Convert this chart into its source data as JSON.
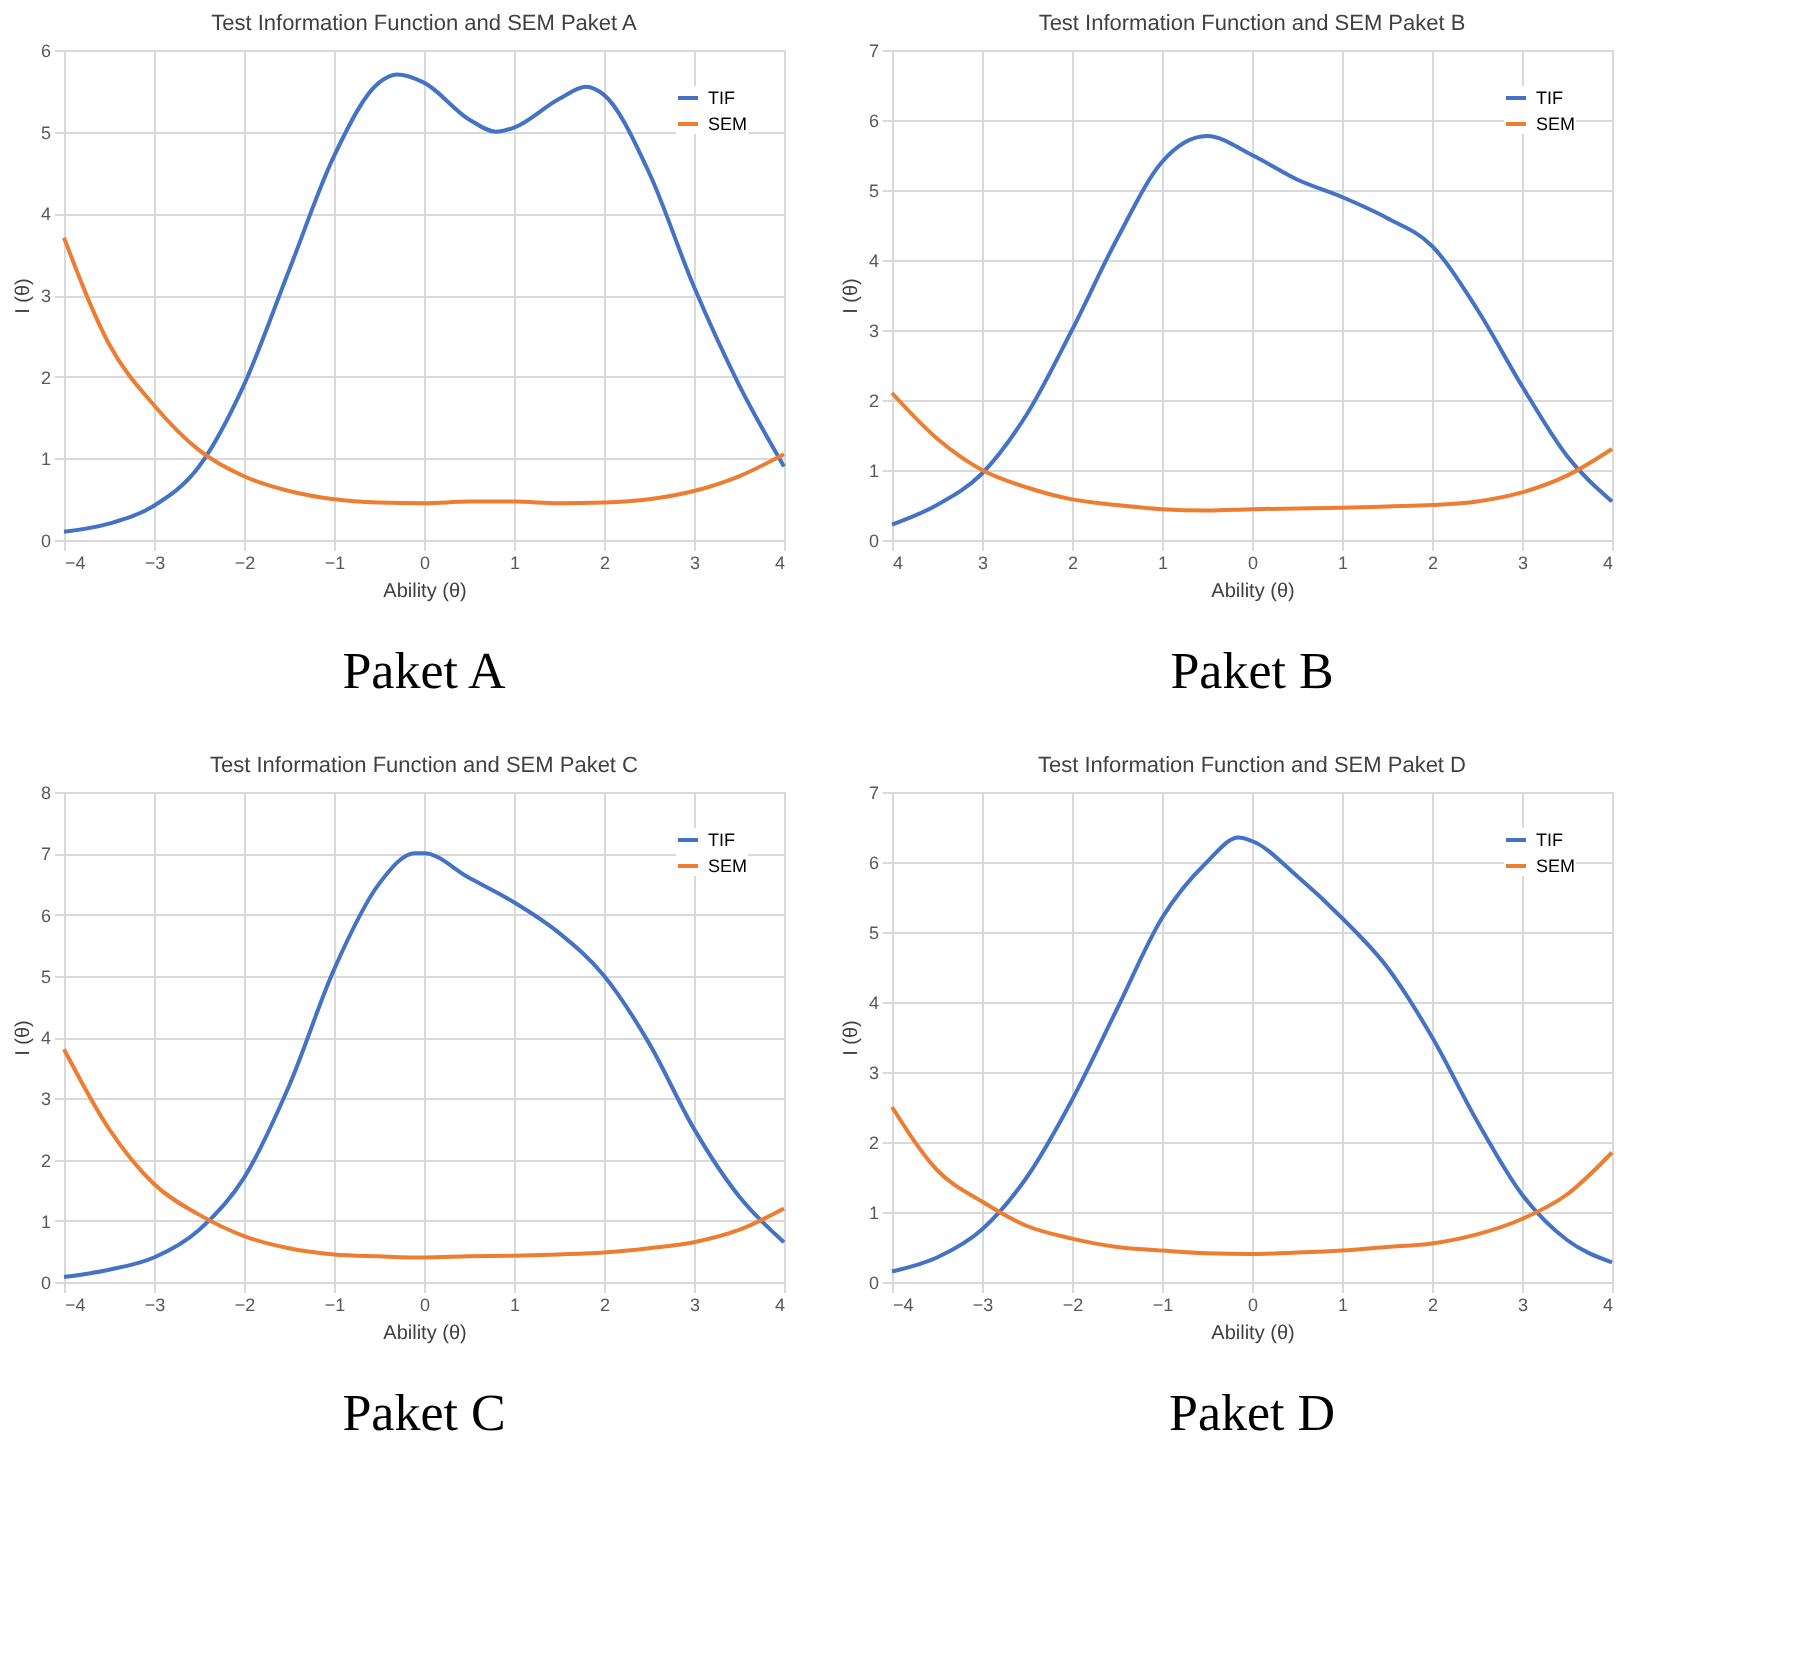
{
  "chart_data": [
    {
      "type": "line",
      "title": "Test Information Function and SEM Paket A",
      "xlabel": "Ability (θ)",
      "ylabel": "I (θ)",
      "annotations": [
        "Paket A"
      ],
      "xlim": [
        -4,
        4
      ],
      "xticks": [
        -4,
        -3,
        -2,
        -1,
        0,
        1,
        2,
        3,
        4
      ],
      "ylim": [
        0,
        6
      ],
      "yticks": [
        0,
        1,
        2,
        3,
        4,
        5,
        6
      ],
      "grid": true,
      "legend": "top right",
      "line_style": "solid",
      "marker": "none",
      "series": [
        {
          "name": "TIF",
          "color": "#4472c4",
          "x": [
            -4,
            -3.5,
            -3,
            -2.5,
            -2,
            -1.5,
            -1,
            -0.5,
            -0.3,
            0,
            0.5,
            0.8,
            1,
            1.5,
            1.8,
            2,
            2.5,
            3,
            3.5,
            4
          ],
          "values": [
            0.1,
            0.2,
            0.42,
            0.9,
            1.9,
            3.3,
            4.7,
            5.6,
            5.7,
            5.6,
            5.15,
            5.0,
            5.05,
            5.4,
            5.55,
            5.45,
            4.5,
            3.1,
            1.9,
            0.9
          ]
        },
        {
          "name": "SEM",
          "color": "#ed7d31",
          "x": [
            -4,
            -3.5,
            -3,
            -2.5,
            -2,
            -1.5,
            -1,
            -0.5,
            0,
            0.5,
            1,
            1.5,
            2,
            2.5,
            3,
            3.5,
            4
          ],
          "values": [
            3.7,
            2.4,
            1.65,
            1.1,
            0.78,
            0.6,
            0.5,
            0.46,
            0.45,
            0.47,
            0.47,
            0.45,
            0.46,
            0.5,
            0.6,
            0.78,
            1.05
          ]
        }
      ]
    },
    {
      "type": "line",
      "title": "Test Information Function and SEM Paket B",
      "xlabel": "Ability (θ)",
      "ylabel": "I (θ)",
      "annotations": [
        "Paket B"
      ],
      "xlim": [
        -4,
        4
      ],
      "xticks": [
        {
          "value": -4,
          "label": "4"
        },
        {
          "value": -3,
          "label": "3"
        },
        {
          "value": -2,
          "label": "2"
        },
        {
          "value": -1,
          "label": "1"
        },
        0,
        1,
        2,
        3,
        4
      ],
      "ylim": [
        0,
        7
      ],
      "yticks": [
        0,
        1,
        2,
        3,
        4,
        5,
        6,
        7
      ],
      "grid": true,
      "legend": "top right",
      "line_style": "solid",
      "marker": "none",
      "series": [
        {
          "name": "TIF",
          "color": "#4472c4",
          "x": [
            -4,
            -3.5,
            -3,
            -2.5,
            -2,
            -1.5,
            -1,
            -0.5,
            0,
            0.5,
            1,
            1.5,
            2,
            2.5,
            3,
            3.5,
            4
          ],
          "values": [
            0.22,
            0.5,
            0.95,
            1.8,
            3.0,
            4.3,
            5.4,
            5.77,
            5.5,
            5.15,
            4.9,
            4.6,
            4.2,
            3.3,
            2.2,
            1.2,
            0.55
          ]
        },
        {
          "name": "SEM",
          "color": "#ed7d31",
          "x": [
            -4,
            -3.5,
            -3,
            -2.5,
            -2,
            -1.5,
            -1,
            -0.5,
            0,
            0.5,
            1,
            1.5,
            2,
            2.5,
            3,
            3.5,
            4
          ],
          "values": [
            2.1,
            1.45,
            1.0,
            0.75,
            0.58,
            0.5,
            0.44,
            0.42,
            0.44,
            0.45,
            0.46,
            0.48,
            0.5,
            0.55,
            0.68,
            0.92,
            1.3
          ]
        }
      ]
    },
    {
      "type": "line",
      "title": "Test Information Function and SEM Paket C",
      "xlabel": "Ability (θ)",
      "ylabel": "I (θ)",
      "annotations": [
        "Paket C"
      ],
      "xlim": [
        -4,
        4
      ],
      "xticks": [
        -4,
        -3,
        -2,
        -1,
        0,
        1,
        2,
        3,
        4
      ],
      "ylim": [
        0,
        8
      ],
      "yticks": [
        0,
        1,
        2,
        3,
        4,
        5,
        6,
        7,
        8
      ],
      "grid": true,
      "legend": "top right",
      "line_style": "solid",
      "marker": "none",
      "series": [
        {
          "name": "TIF",
          "color": "#4472c4",
          "x": [
            -4,
            -3.5,
            -3,
            -2.5,
            -2,
            -1.5,
            -1,
            -0.5,
            -0.1,
            0,
            0.5,
            1,
            1.5,
            2,
            2.5,
            3,
            3.5,
            4
          ],
          "values": [
            0.08,
            0.2,
            0.4,
            0.85,
            1.7,
            3.2,
            5.1,
            6.5,
            7.0,
            7.0,
            6.6,
            6.2,
            5.7,
            5.0,
            3.9,
            2.5,
            1.4,
            0.65
          ]
        },
        {
          "name": "SEM",
          "color": "#ed7d31",
          "x": [
            -4,
            -3.5,
            -3,
            -2.5,
            -2,
            -1.5,
            -1,
            -0.5,
            0,
            0.5,
            1,
            1.5,
            2,
            2.5,
            3,
            3.5,
            4
          ],
          "values": [
            3.8,
            2.5,
            1.6,
            1.1,
            0.75,
            0.55,
            0.45,
            0.42,
            0.4,
            0.42,
            0.43,
            0.45,
            0.48,
            0.55,
            0.65,
            0.85,
            1.2
          ]
        }
      ]
    },
    {
      "type": "line",
      "title": "Test Information Function and SEM Paket D",
      "xlabel": "Ability (θ)",
      "ylabel": "I (θ)",
      "annotations": [
        "Paket D"
      ],
      "xlim": [
        -4,
        4
      ],
      "xticks": [
        -4,
        -3,
        -2,
        -1,
        0,
        1,
        2,
        3,
        4
      ],
      "ylim": [
        0,
        7
      ],
      "yticks": [
        0,
        1,
        2,
        3,
        4,
        5,
        6,
        7
      ],
      "grid": true,
      "legend": "top right",
      "line_style": "solid",
      "marker": "none",
      "series": [
        {
          "name": "TIF",
          "color": "#4472c4",
          "x": [
            -4,
            -3.5,
            -3,
            -2.5,
            -2,
            -1.5,
            -1,
            -0.5,
            -0.15,
            0,
            0.5,
            1,
            1.5,
            2,
            2.5,
            3,
            3.5,
            4
          ],
          "values": [
            0.15,
            0.35,
            0.75,
            1.5,
            2.6,
            3.9,
            5.2,
            6.0,
            6.35,
            6.3,
            5.8,
            5.2,
            4.5,
            3.5,
            2.3,
            1.25,
            0.6,
            0.28
          ]
        },
        {
          "name": "SEM",
          "color": "#ed7d31",
          "x": [
            -4,
            -3.5,
            -3,
            -2.5,
            -2,
            -1.5,
            -1,
            -0.5,
            0,
            0.5,
            1,
            1.5,
            2,
            2.5,
            3,
            3.5,
            4
          ],
          "values": [
            2.5,
            1.6,
            1.15,
            0.8,
            0.62,
            0.5,
            0.45,
            0.41,
            0.4,
            0.42,
            0.45,
            0.5,
            0.55,
            0.68,
            0.9,
            1.25,
            1.85
          ]
        }
      ]
    }
  ]
}
